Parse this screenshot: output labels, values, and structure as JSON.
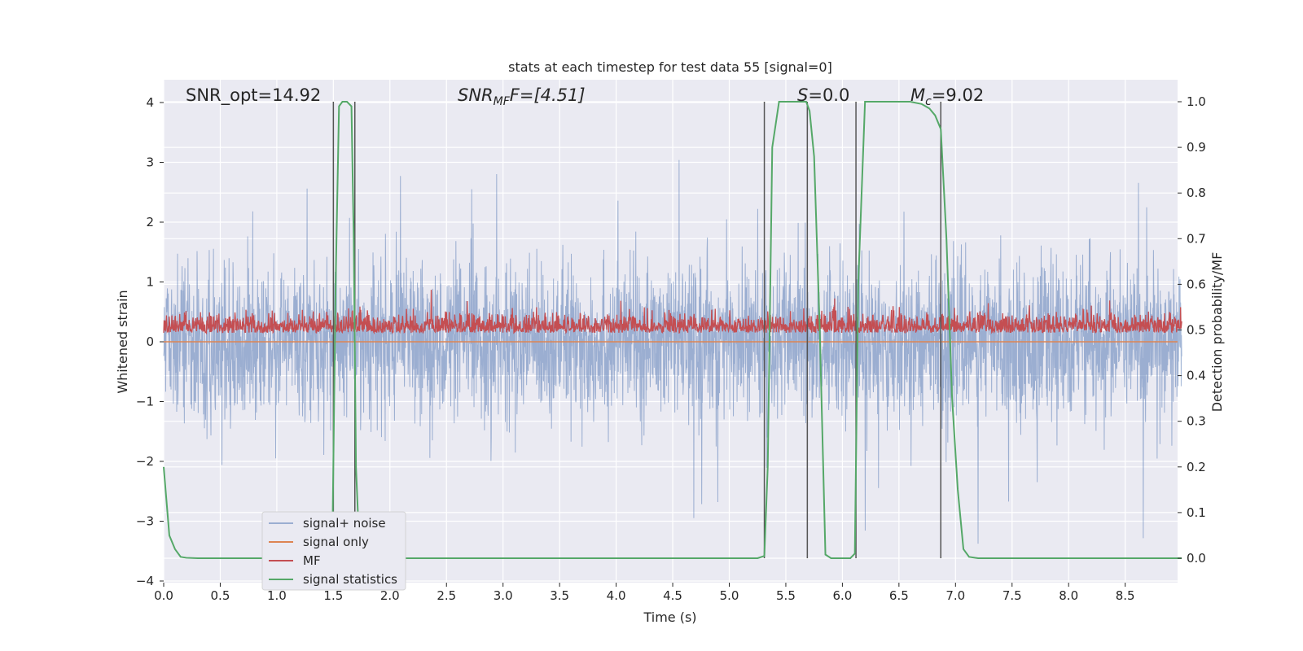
{
  "chart_data": {
    "type": "line",
    "title": "stats at each timestep for test data 55 [signal=0]",
    "xlabel": "Time (s)",
    "ylabel_left": "Whitened strain",
    "ylabel_right": "Detection probability/MF",
    "xlim": [
      0,
      9.0
    ],
    "ylim_left": [
      -4.0,
      4.4
    ],
    "ylim_right": [
      -0.05,
      1.05
    ],
    "x_ticks": [
      "0.0",
      "0.5",
      "1.0",
      "1.5",
      "2.0",
      "2.5",
      "3.0",
      "3.5",
      "4.0",
      "4.5",
      "5.0",
      "5.5",
      "6.0",
      "6.5",
      "7.0",
      "7.5",
      "8.0",
      "8.5"
    ],
    "y_left_ticks": [
      "4",
      "3",
      "2",
      "1",
      "0",
      "−1",
      "−2",
      "−3",
      "−4"
    ],
    "y_right_ticks": [
      "1.0",
      "0.9",
      "0.8",
      "0.7",
      "0.6",
      "0.5",
      "0.4",
      "0.3",
      "0.2",
      "0.1",
      "0.0"
    ],
    "grid": true,
    "legend_position": "lower-left",
    "annotations": [
      {
        "text": "SNR_opt=14.92",
        "x": 0.2,
        "y": 4.0
      },
      {
        "text": "SNR",
        "sub": "MF",
        "suffix": "F=[4.51]",
        "x": 2.6,
        "y": 4.0
      },
      {
        "text": "S",
        "suffix": "=0.0",
        "x": 5.6,
        "y": 4.0
      },
      {
        "text": "M",
        "sub": "c",
        "suffix": "=9.02",
        "x": 6.6,
        "y": 4.0
      }
    ],
    "vertical_lines_x": [
      1.5,
      1.69,
      5.31,
      5.69,
      6.12,
      6.87
    ],
    "series": [
      {
        "name": "signal+ noise",
        "color": "#4c72b0",
        "opacity": 0.5,
        "axis": "left",
        "description_stats": {
          "typical_range": [
            -2.0,
            2.0
          ],
          "peak_max": 3.3,
          "peak_min": -3.6
        }
      },
      {
        "name": "signal only",
        "color": "#dd8452",
        "axis": "left",
        "values_constant": 0.0
      },
      {
        "name": "MF",
        "color": "#c44e52",
        "axis": "left",
        "description_stats": {
          "typical_range": [
            0.0,
            0.6
          ],
          "peak_max": 1.0
        }
      },
      {
        "name": "signal statistics",
        "color": "#55a868",
        "axis": "right",
        "x": [
          0.0,
          0.05,
          0.1,
          0.15,
          0.2,
          0.3,
          0.5,
          1.0,
          1.4,
          1.49,
          1.52,
          1.55,
          1.58,
          1.62,
          1.66,
          1.68,
          1.7,
          1.73,
          1.76,
          1.8,
          2.0,
          3.0,
          4.0,
          5.0,
          5.25,
          5.31,
          5.34,
          5.38,
          5.44,
          5.5,
          5.6,
          5.68,
          5.71,
          5.75,
          5.8,
          5.85,
          5.9,
          6.0,
          6.07,
          6.11,
          6.14,
          6.2,
          6.4,
          6.6,
          6.7,
          6.77,
          6.82,
          6.87,
          6.92,
          6.97,
          7.02,
          7.07,
          7.12,
          7.2,
          7.5,
          8.0,
          8.5,
          9.0
        ],
        "y": [
          0.2,
          0.05,
          0.02,
          0.003,
          0.001,
          0.0,
          0.0,
          0.0,
          0.0,
          0.01,
          0.6,
          0.99,
          1.0,
          1.0,
          0.99,
          0.7,
          0.2,
          0.02,
          0.001,
          0.0,
          0.0,
          0.0,
          0.0,
          0.0,
          0.0,
          0.005,
          0.2,
          0.9,
          1.0,
          1.0,
          1.0,
          1.0,
          0.98,
          0.88,
          0.5,
          0.008,
          0.0,
          0.0,
          0.0,
          0.01,
          0.6,
          1.0,
          1.0,
          1.0,
          0.995,
          0.985,
          0.97,
          0.94,
          0.7,
          0.35,
          0.15,
          0.02,
          0.003,
          0.0,
          0.0,
          0.0,
          0.0,
          0.0
        ]
      }
    ]
  }
}
